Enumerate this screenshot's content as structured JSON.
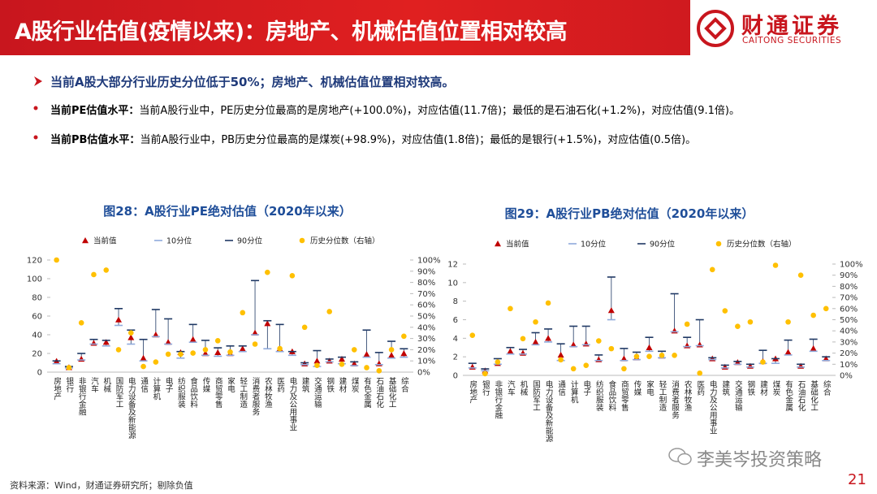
{
  "header": {
    "title": "A股行业估值(疫情以来)：房地产、机械估值位置相对较高",
    "logo_name": "财通证券",
    "logo_subtitle": "CAITONG SECURITIES"
  },
  "bullets": [
    {
      "text": "当前A股大部分行业历史分位低于50%；房地产、机械估值位置相对较高。"
    },
    {
      "label": "当前PE估值水平：",
      "text": "当前A股行业中，PE历史分位最高的是房地产(+100.0%)，对应估值(11.7倍)；最低的是石油石化(+1.2%)，对应估值(9.1倍)。"
    },
    {
      "label": "当前PB估值水平：",
      "text": "当前A股行业中，PB历史分位最高的是煤炭(+98.9%)，对应估值(1.8倍)；最低的是银行(+1.5%)，对应估值(0.5倍)。"
    }
  ],
  "chart_data": [
    {
      "type": "scatter",
      "title": "图28：A股行业PE绝对估值（2020年以来）",
      "categories": [
        "房地产",
        "银行",
        "非银行金融",
        "汽车",
        "机械",
        "国防军工",
        "电力设备及新能源",
        "通信",
        "计算机",
        "电子",
        "纺织服装",
        "食品饮料",
        "传媒",
        "商贸零售",
        "家电",
        "轻工制造",
        "消费者服务",
        "农林牧渔",
        "医药",
        "电力及公用事业",
        "建筑",
        "交通运输",
        "钢铁",
        "建材",
        "煤炭",
        "有色金属",
        "石油石化",
        "基础化工",
        "综合"
      ],
      "series": [
        {
          "name": "当前值",
          "marker": "triangle",
          "color": "#c00000",
          "values": [
            11.7,
            5,
            14,
            31,
            32,
            56,
            37,
            15,
            40,
            32,
            21,
            35,
            20,
            21,
            20,
            25,
            42,
            52,
            25,
            22,
            9,
            12,
            12,
            14,
            9,
            19,
            9.1,
            18,
            20
          ]
        },
        {
          "name": "10分位",
          "marker": "dash",
          "color": "#8faadc",
          "values": [
            9,
            4.5,
            13,
            30,
            28,
            50,
            30,
            12,
            38,
            30,
            15,
            32,
            18,
            17,
            18,
            22,
            40,
            25,
            22,
            18,
            8,
            6,
            11,
            9,
            7,
            16,
            8,
            15,
            16
          ]
        },
        {
          "name": "90分位",
          "marker": "dash",
          "color": "#1f3864",
          "values": [
            12,
            6,
            20,
            35,
            34,
            68,
            45,
            35,
            67,
            57,
            22,
            51,
            34,
            26,
            28,
            28,
            98,
            55,
            51,
            22,
            10,
            23,
            14,
            16,
            11,
            45,
            21,
            33,
            25
          ]
        },
        {
          "name": "历史分位数（右轴）",
          "marker": "circle",
          "color": "#ffc000",
          "axis": "y2",
          "values": [
            100,
            4,
            44,
            87,
            91,
            20,
            35,
            5,
            9,
            16,
            16,
            17,
            20,
            28,
            18,
            53,
            25,
            89,
            21,
            86,
            40,
            6,
            54,
            7,
            20,
            4,
            1.2,
            20,
            32
          ]
        }
      ],
      "ylim": [
        0,
        120
      ],
      "yticks": [
        0,
        20,
        40,
        60,
        80,
        100,
        120
      ],
      "y2lim": [
        0,
        100
      ],
      "y2ticks": [
        {
          "value": 0,
          "label": "0%"
        },
        {
          "value": 10,
          "label": "10%"
        },
        {
          "value": 20,
          "label": "20%"
        },
        {
          "value": 30,
          "label": "30%"
        },
        {
          "value": 40,
          "label": "40%"
        },
        {
          "value": 50,
          "label": "50%"
        },
        {
          "value": 60,
          "label": "60%"
        },
        {
          "value": 70,
          "label": "70%"
        },
        {
          "value": 80,
          "label": "80%"
        },
        {
          "value": 90,
          "label": "90%"
        },
        {
          "value": 100,
          "label": "100%"
        }
      ],
      "legend": "top"
    },
    {
      "type": "scatter",
      "title": "图29：A股行业PB绝对估值（2020年以来）",
      "categories": [
        "房地产",
        "银行",
        "非银行金融",
        "汽车",
        "机械",
        "国防军工",
        "电力设备及新能源",
        "通信",
        "计算机",
        "电子",
        "纺织服装",
        "食品饮料",
        "商贸零售",
        "传媒",
        "家电",
        "轻工制造",
        "消费者服务",
        "农林牧渔",
        "医药",
        "电力及公用事业",
        "建筑",
        "交通运输",
        "钢铁",
        "建材",
        "煤炭",
        "有色金属",
        "石油石化",
        "基础化工",
        "综合"
      ],
      "series": [
        {
          "name": "当前值",
          "marker": "triangle",
          "color": "#c00000",
          "values": [
            0.9,
            0.5,
            1.3,
            2.6,
            2.4,
            3.6,
            4.0,
            2.2,
            3.3,
            3.4,
            1.7,
            7.0,
            1.8,
            1.9,
            3.0,
            2.1,
            4.8,
            3.2,
            3.3,
            1.8,
            0.9,
            1.4,
            1.0,
            1.5,
            1.8,
            2.5,
            1.0,
            2.9,
            1.8
          ]
        },
        {
          "name": "10分位",
          "marker": "dash",
          "color": "#8faadc",
          "values": [
            0.8,
            0.5,
            1.2,
            2.3,
            2.3,
            3.3,
            3.6,
            1.6,
            3.1,
            3.3,
            1.6,
            6.0,
            1.6,
            1.7,
            2.6,
            1.9,
            4.7,
            3.1,
            3.2,
            1.7,
            0.8,
            1.2,
            0.9,
            1.3,
            1.3,
            2.2,
            0.9,
            2.6,
            1.6
          ]
        },
        {
          "name": "90分位",
          "marker": "dash",
          "color": "#1f3864",
          "values": [
            1.3,
            0.7,
            1.8,
            3.0,
            2.8,
            4.6,
            5.0,
            3.4,
            5.3,
            5.3,
            2.2,
            10.6,
            2.9,
            2.5,
            4.1,
            2.6,
            8.8,
            4.1,
            6.0,
            1.9,
            1.1,
            1.5,
            1.2,
            2.7,
            1.8,
            3.8,
            1.2,
            3.9,
            2.0
          ]
        },
        {
          "name": "历史分位数（右轴）",
          "marker": "circle",
          "color": "#ffc000",
          "axis": "y2",
          "values": [
            36,
            1.5,
            12,
            60,
            33,
            48,
            65,
            14,
            6,
            9,
            31,
            24,
            6,
            17,
            17,
            18,
            18,
            46,
            2,
            95,
            58,
            44,
            48,
            12,
            98.9,
            48,
            90,
            54,
            60
          ]
        }
      ],
      "ylim": [
        0,
        12
      ],
      "yticks": [
        0,
        2,
        4,
        6,
        8,
        10,
        12
      ],
      "y2lim": [
        0,
        100
      ],
      "y2ticks": [
        {
          "value": 0,
          "label": "0%"
        },
        {
          "value": 10,
          "label": "10%"
        },
        {
          "value": 20,
          "label": "20%"
        },
        {
          "value": 30,
          "label": "30%"
        },
        {
          "value": 40,
          "label": "40%"
        },
        {
          "value": 50,
          "label": "50%"
        },
        {
          "value": 60,
          "label": "60%"
        },
        {
          "value": 70,
          "label": "70%"
        },
        {
          "value": 80,
          "label": "80%"
        },
        {
          "value": 90,
          "label": "90%"
        },
        {
          "value": 100,
          "label": "100%"
        }
      ],
      "legend": "top"
    }
  ],
  "footer": {
    "source": "资料来源：Wind，财通证券研究所；剔除负值",
    "watermark": "李美岑投资策略",
    "page": "21"
  }
}
